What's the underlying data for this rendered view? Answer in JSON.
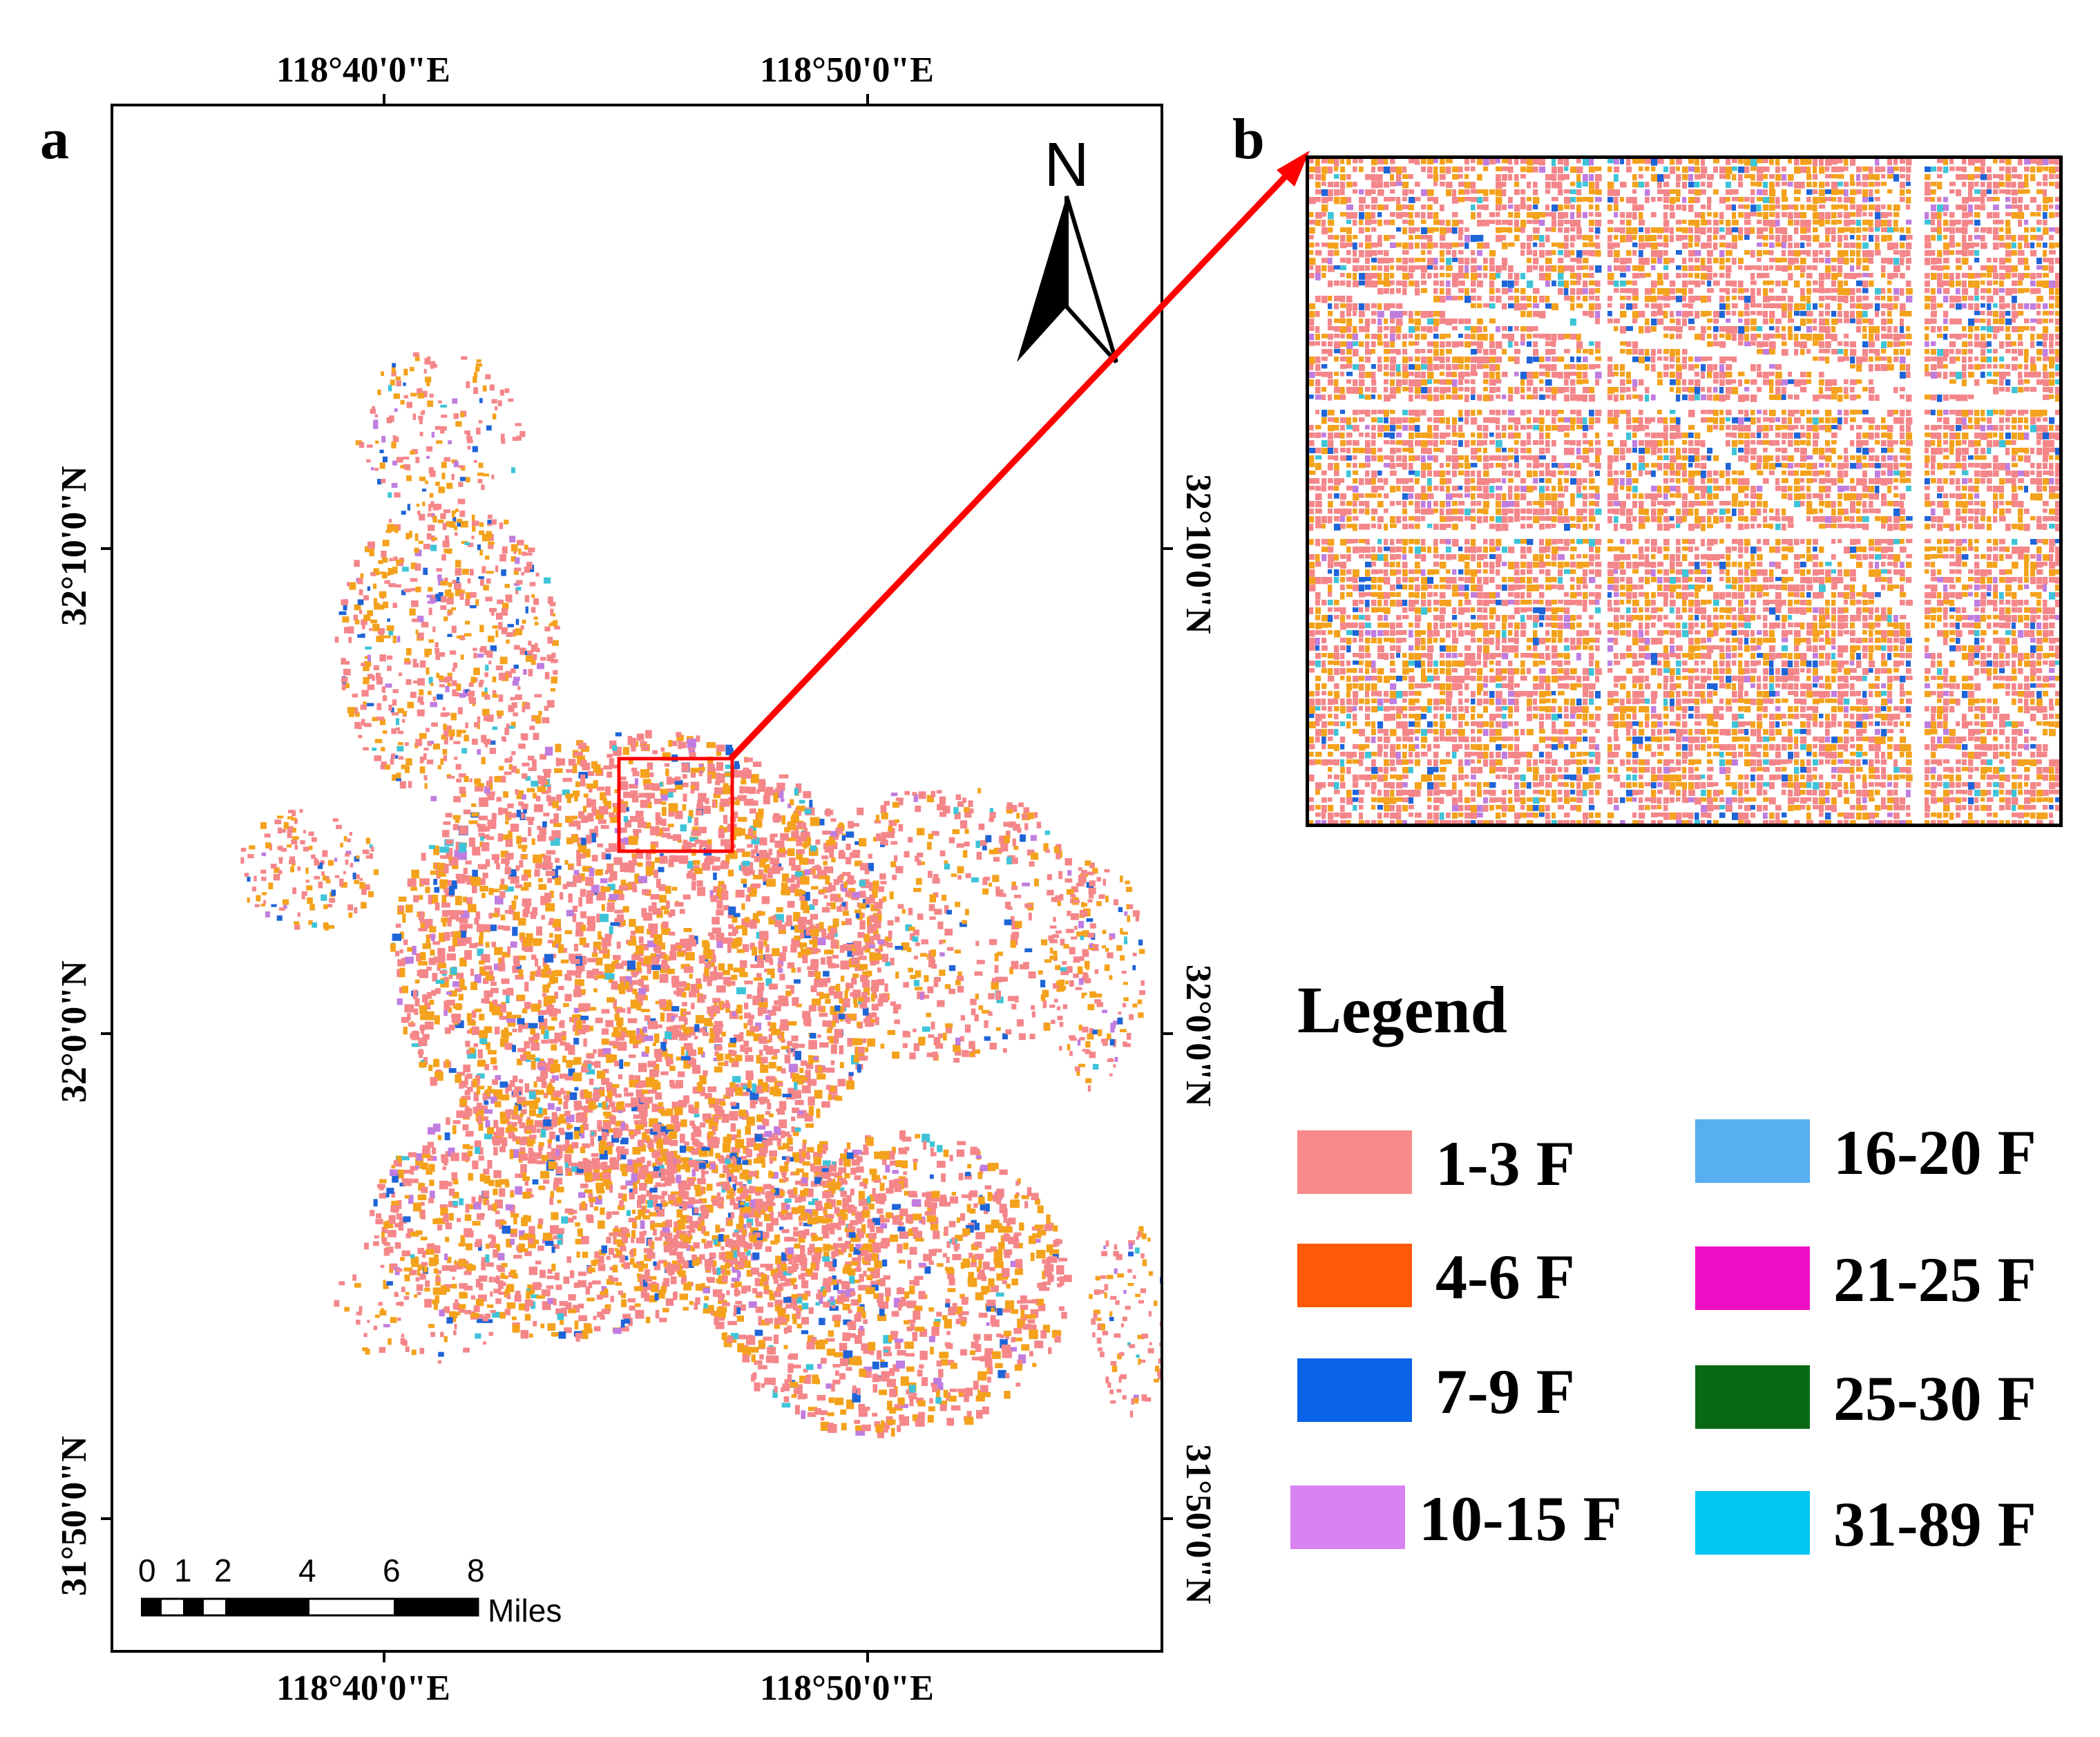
{
  "panels": {
    "a": "a",
    "b": "b"
  },
  "coordinates": {
    "top": [
      "118°40'0\"E",
      "118°50'0\"E"
    ],
    "bottom": [
      "118°40'0\"E",
      "118°50'0\"E"
    ],
    "left": [
      "32°10'0\"N",
      "32°0'0\"N",
      "31°50'0\"N"
    ],
    "right": [
      "32°10'0\"N",
      "32°0'0\"N",
      "31°50'0\"N"
    ]
  },
  "north_arrow": {
    "label": "N"
  },
  "scale_bar": {
    "ticks": [
      "0",
      "1",
      "2",
      "4",
      "6",
      "8"
    ],
    "unit": "Miles"
  },
  "legend": {
    "title": "Legend",
    "items": [
      {
        "label": "1-3 F",
        "color": "#f98a8a"
      },
      {
        "label": "4-6 F",
        "color": "#ff5a0a"
      },
      {
        "label": "7-9 F",
        "color": "#0a63e8"
      },
      {
        "label": "10-15 F",
        "color": "#d983f2"
      },
      {
        "label": "16-20 F",
        "color": "#57aef0"
      },
      {
        "label": "21-25 F",
        "color": "#f00fc6"
      },
      {
        "label": "25-30 F",
        "color": "#0a6a14"
      },
      {
        "label": "31-89 F",
        "color": "#00c6f2"
      }
    ]
  },
  "palette": {
    "low": "#f4868a",
    "mid": "#f4a21c",
    "accent_blue": "#1e64d8",
    "accent_cyan": "#3ec4d8",
    "accent_violet": "#c07de0",
    "arrow": "#ff0000"
  }
}
